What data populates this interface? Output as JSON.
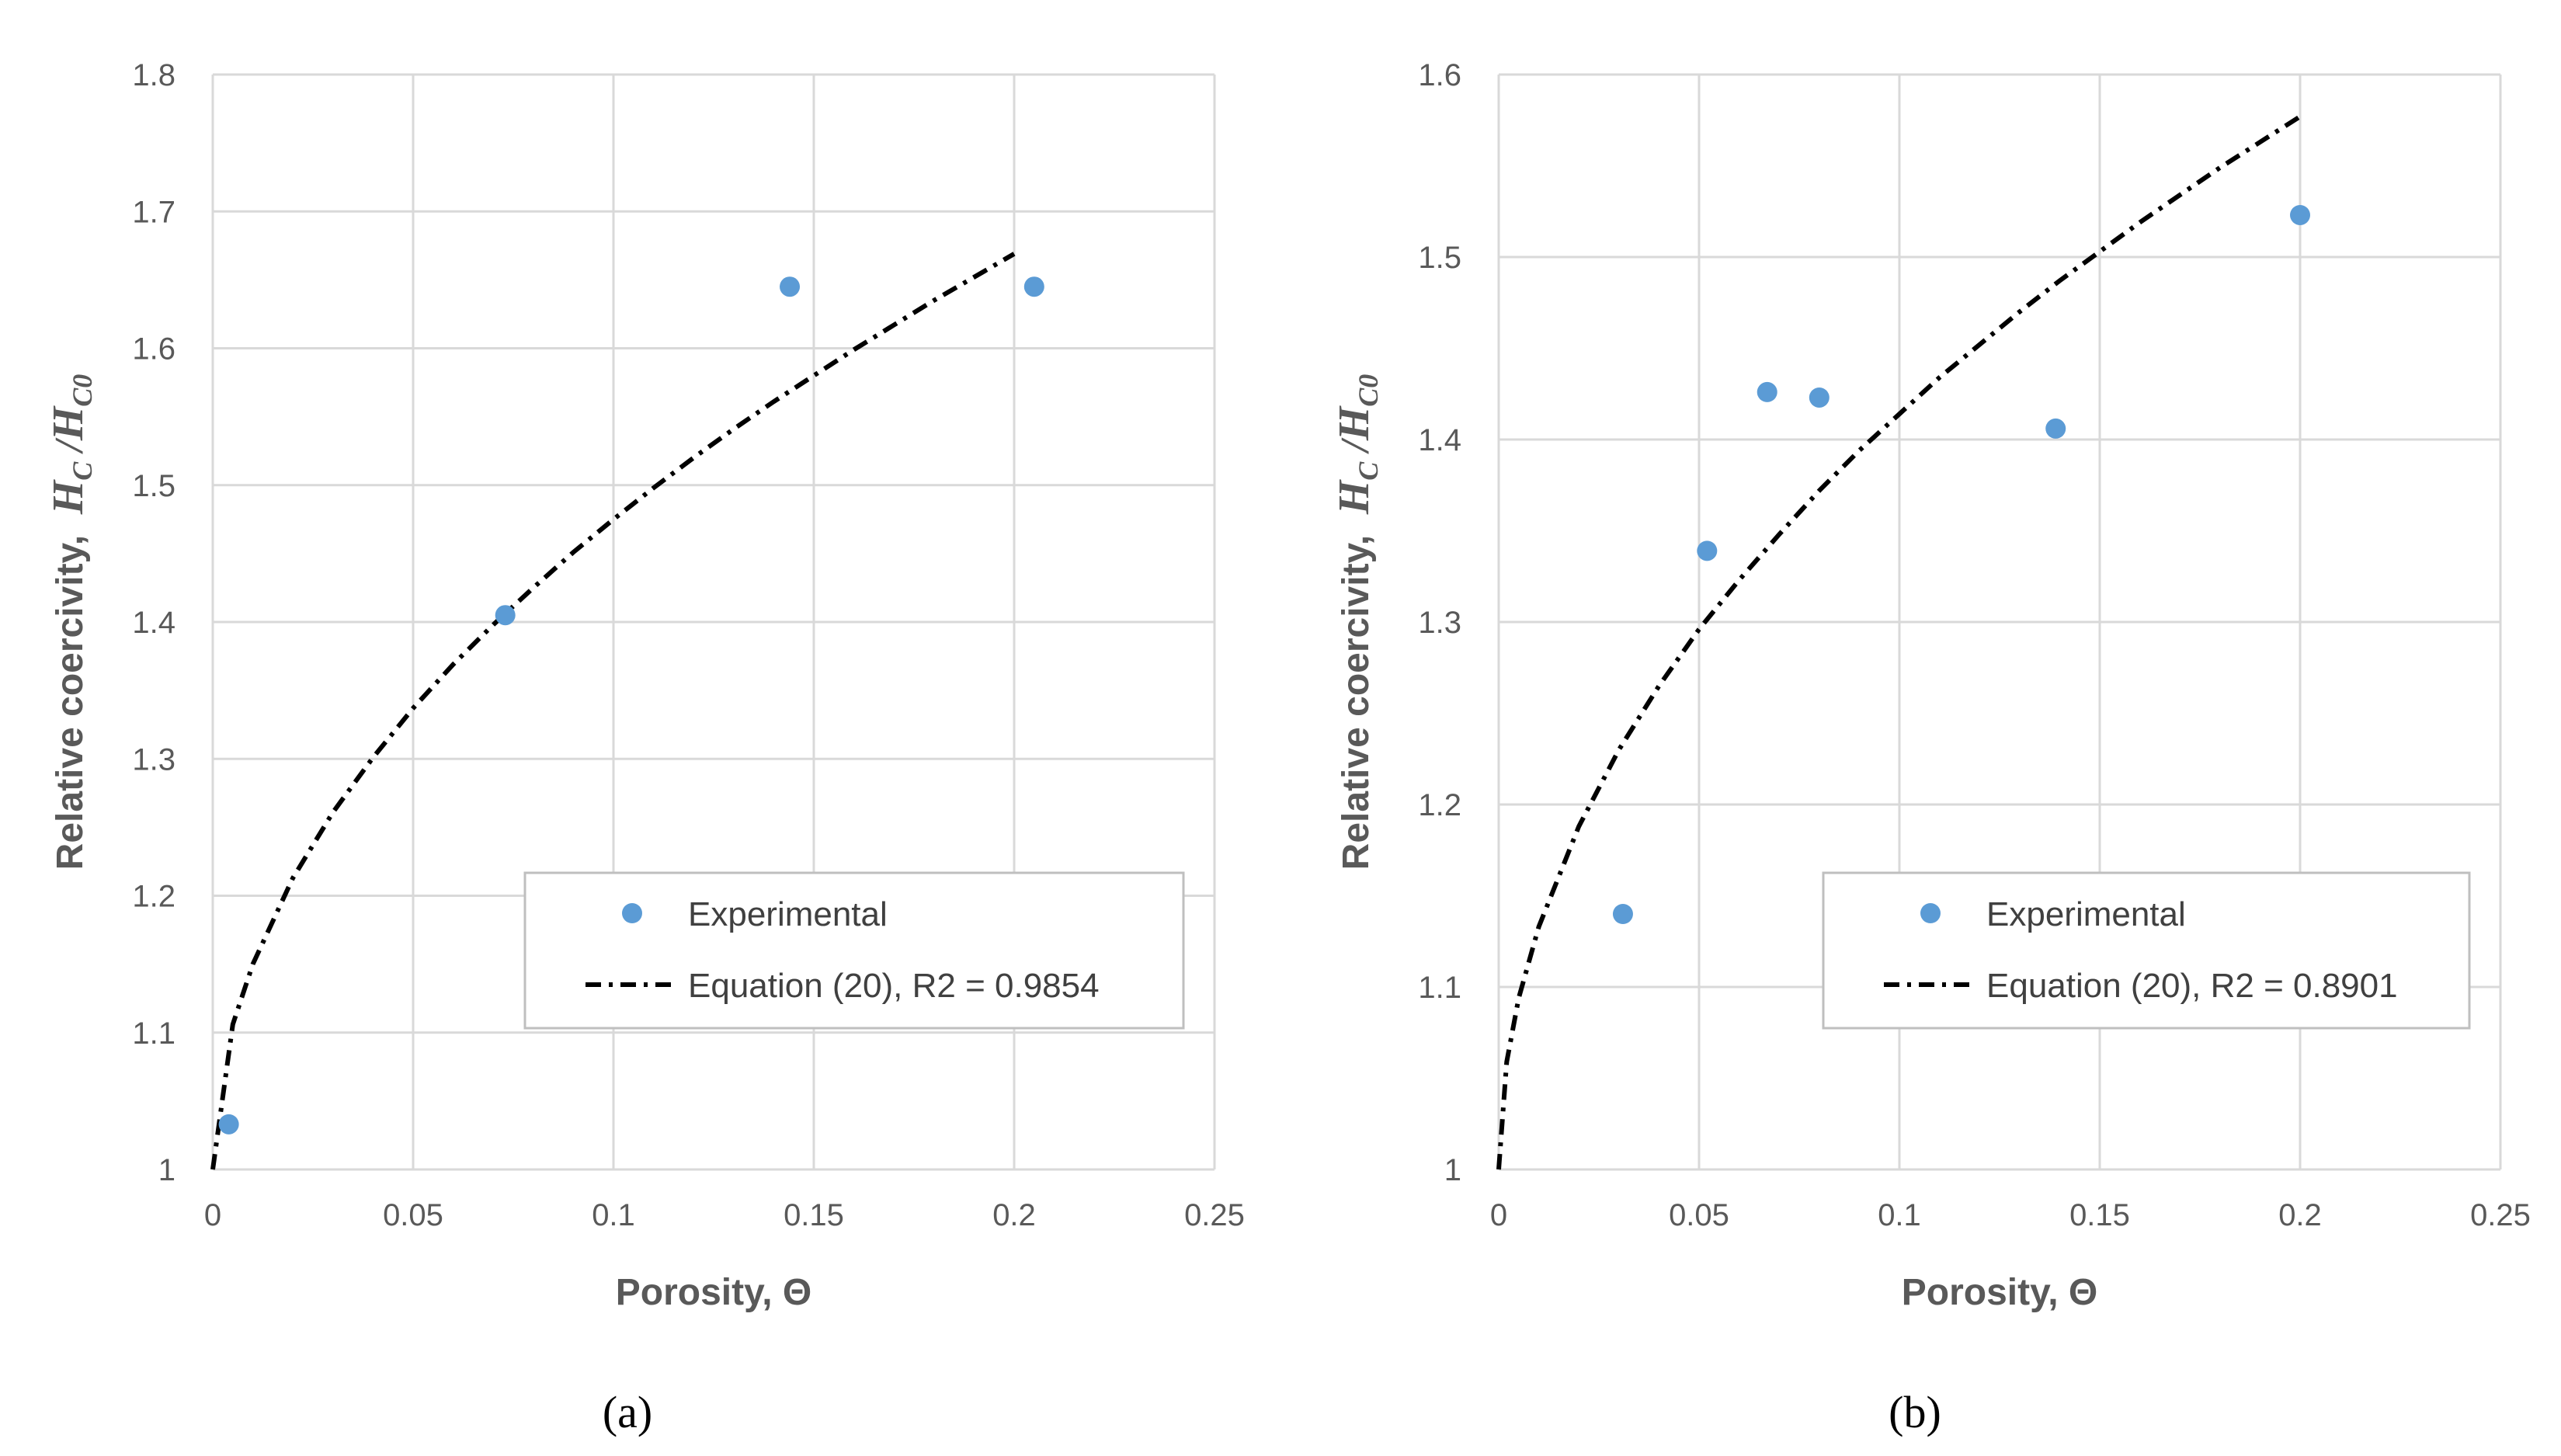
{
  "chart_data": [
    {
      "type": "scatter",
      "panel_label": "(a)",
      "xlabel": "Porosity, Θ",
      "ylabel_text": "Relative coercivity,",
      "ylabel_math": {
        "H": "H",
        "sub1": "C",
        "sep": "/",
        "sub2": "C0"
      },
      "xlim": [
        0,
        0.25
      ],
      "ylim": [
        1,
        1.8
      ],
      "xticks": [
        "0",
        "0.05",
        "0.1",
        "0.15",
        "0.2",
        "0.25"
      ],
      "yticks": [
        "1",
        "1.1",
        "1.2",
        "1.3",
        "1.4",
        "1.5",
        "1.6",
        "1.7",
        "1.8"
      ],
      "grid": true,
      "legend_position": "lower-right",
      "series": [
        {
          "name": "Experimental",
          "kind": "markers",
          "color": "#5b9bd5",
          "x": [
            0.004,
            0.073,
            0.144,
            0.205
          ],
          "y": [
            1.033,
            1.405,
            1.645,
            1.645
          ]
        },
        {
          "name": "Equation (20), R2 = 0.9854",
          "kind": "dash-dot-line",
          "color": "#000000",
          "x": [
            0,
            0.005,
            0.01,
            0.02,
            0.03,
            0.04,
            0.05,
            0.06,
            0.07,
            0.08,
            0.09,
            0.1,
            0.11,
            0.12,
            0.13,
            0.14,
            0.15,
            0.16,
            0.17,
            0.18,
            0.19,
            0.2
          ],
          "y": [
            1.0,
            1.106,
            1.15,
            1.213,
            1.261,
            1.301,
            1.337,
            1.369,
            1.398,
            1.425,
            1.451,
            1.475,
            1.498,
            1.52,
            1.541,
            1.561,
            1.58,
            1.599,
            1.617,
            1.635,
            1.652,
            1.669
          ]
        }
      ]
    },
    {
      "type": "scatter",
      "panel_label": "(b)",
      "xlabel": "Porosity, Θ",
      "ylabel_text": "Relative coercivity,",
      "ylabel_math": {
        "H": "H",
        "sub1": "C",
        "sep": "/",
        "sub2": "C0"
      },
      "xlim": [
        0,
        0.25
      ],
      "ylim": [
        1,
        1.6
      ],
      "xticks": [
        "0",
        "0.05",
        "0.1",
        "0.15",
        "0.2",
        "0.25"
      ],
      "yticks": [
        "1",
        "1.1",
        "1.2",
        "1.3",
        "1.4",
        "1.5",
        "1.6"
      ],
      "grid": true,
      "legend_position": "lower-right",
      "series": [
        {
          "name": "Experimental",
          "kind": "markers",
          "color": "#5b9bd5",
          "x": [
            0.031,
            0.052,
            0.067,
            0.08,
            0.139,
            0.2
          ],
          "y": [
            1.14,
            1.339,
            1.426,
            1.423,
            1.406,
            1.523
          ]
        },
        {
          "name": "Equation (20), R2 = 0.8901",
          "kind": "dash-dot-line",
          "color": "#000000",
          "x": [
            0,
            0.002,
            0.005,
            0.01,
            0.02,
            0.03,
            0.04,
            0.05,
            0.06,
            0.07,
            0.08,
            0.09,
            0.1,
            0.11,
            0.12,
            0.13,
            0.14,
            0.15,
            0.16,
            0.17,
            0.18,
            0.19,
            0.2
          ],
          "y": [
            1.0,
            1.059,
            1.094,
            1.133,
            1.188,
            1.23,
            1.265,
            1.296,
            1.323,
            1.348,
            1.372,
            1.394,
            1.414,
            1.434,
            1.452,
            1.47,
            1.487,
            1.503,
            1.519,
            1.534,
            1.549,
            1.563,
            1.577
          ]
        }
      ]
    }
  ]
}
